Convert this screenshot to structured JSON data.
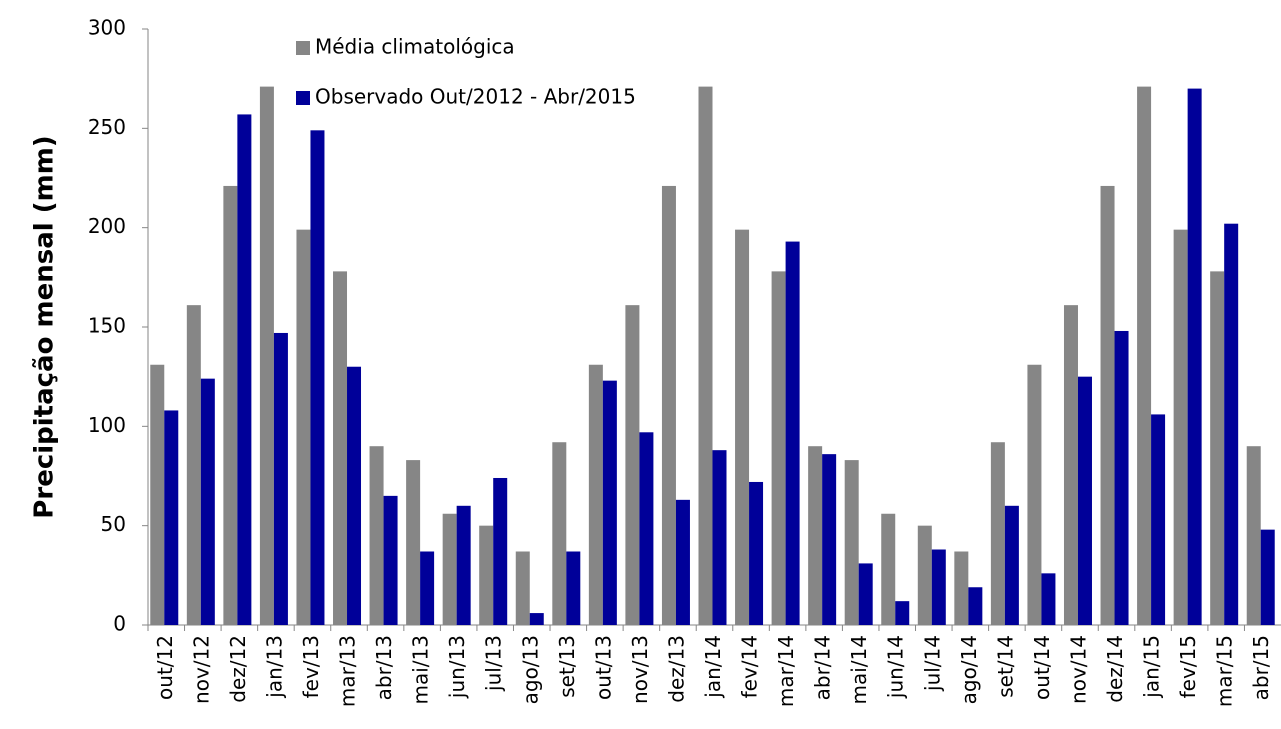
{
  "chart_data": {
    "type": "bar",
    "y_label": "Precipitação mensal (mm)",
    "categories": [
      "out/12",
      "nov/12",
      "dez/12",
      "jan/13",
      "fev/13",
      "mar/13",
      "abr/13",
      "mai/13",
      "jun/13",
      "jul/13",
      "ago/13",
      "set/13",
      "out/13",
      "nov/13",
      "dez/13",
      "jan/14",
      "fev/14",
      "mar/14",
      "abr/14",
      "mai/14",
      "jun/14",
      "jul/14",
      "ago/14",
      "set/14",
      "out/14",
      "nov/14",
      "dez/14",
      "jan/15",
      "fev/15",
      "mar/15",
      "abr/15"
    ],
    "series": [
      {
        "name": "Média climatológica",
        "color": "#868686",
        "values": [
          131,
          161,
          221,
          271,
          199,
          178,
          90,
          83,
          56,
          50,
          37,
          92,
          131,
          161,
          221,
          271,
          199,
          178,
          90,
          83,
          56,
          50,
          37,
          92,
          131,
          161,
          221,
          271,
          199,
          178,
          90
        ]
      },
      {
        "name": "Observado Out/2012 - Abr/2015",
        "color": "#000099",
        "values": [
          108,
          124,
          257,
          147,
          249,
          130,
          65,
          37,
          60,
          74,
          6,
          37,
          123,
          97,
          63,
          88,
          72,
          193,
          86,
          31,
          12,
          38,
          19,
          60,
          26,
          125,
          148,
          106,
          270,
          202,
          48
        ]
      }
    ],
    "ylim": [
      0,
      300
    ],
    "yticks": [
      0,
      50,
      100,
      150,
      200,
      250,
      300
    ],
    "legend": "top-left"
  }
}
